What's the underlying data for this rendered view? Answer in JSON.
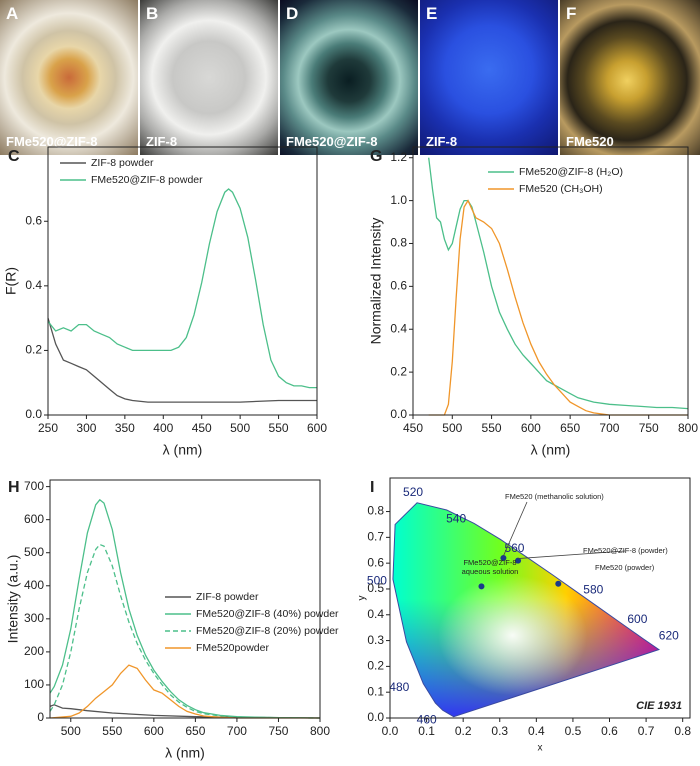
{
  "photos": [
    {
      "letter": "A",
      "caption": "FMe520@ZIF-8"
    },
    {
      "letter": "B",
      "caption": "ZIF-8"
    },
    {
      "letter": "D",
      "caption": "FMe520@ZIF-8"
    },
    {
      "letter": "E",
      "caption": "ZIF-8"
    },
    {
      "letter": "F",
      "caption": "FMe520"
    }
  ],
  "chart_data": [
    {
      "panel": "C",
      "type": "line",
      "xlabel": "λ (nm)",
      "ylabel": "F(R)",
      "xlim": [
        250,
        600
      ],
      "ylim": [
        0,
        0.83
      ],
      "xticks": [
        250,
        300,
        350,
        400,
        450,
        500,
        550,
        600
      ],
      "yticks": [
        {
          "value": 0,
          "label": "0.0"
        },
        0.2,
        0.4,
        0.6
      ],
      "legend": "upper left",
      "series": [
        {
          "name": "ZIF-8 powder",
          "color": "#555555",
          "x": [
            250,
            260,
            270,
            280,
            290,
            300,
            310,
            320,
            330,
            340,
            350,
            360,
            380,
            400,
            450,
            500,
            550,
            600
          ],
          "values": [
            0.3,
            0.22,
            0.17,
            0.16,
            0.15,
            0.14,
            0.12,
            0.1,
            0.08,
            0.06,
            0.05,
            0.045,
            0.04,
            0.04,
            0.04,
            0.04,
            0.045,
            0.045
          ]
        },
        {
          "name": "FMe520@ZIF-8 powder",
          "color": "#4cbf8a",
          "x": [
            250,
            260,
            270,
            280,
            290,
            300,
            310,
            320,
            330,
            340,
            350,
            360,
            370,
            380,
            390,
            400,
            410,
            420,
            430,
            440,
            450,
            460,
            470,
            480,
            485,
            490,
            500,
            510,
            520,
            530,
            540,
            550,
            560,
            570,
            580,
            590,
            600
          ],
          "values": [
            0.29,
            0.26,
            0.27,
            0.26,
            0.28,
            0.28,
            0.26,
            0.25,
            0.24,
            0.22,
            0.21,
            0.2,
            0.2,
            0.2,
            0.2,
            0.2,
            0.2,
            0.21,
            0.24,
            0.31,
            0.41,
            0.53,
            0.63,
            0.69,
            0.7,
            0.69,
            0.64,
            0.55,
            0.42,
            0.28,
            0.17,
            0.12,
            0.1,
            0.09,
            0.09,
            0.085,
            0.085
          ]
        }
      ]
    },
    {
      "panel": "G",
      "type": "line",
      "xlabel": "λ (nm)",
      "ylabel": "Normalized Intensity",
      "xlim": [
        450,
        800
      ],
      "ylim": [
        0,
        1.25
      ],
      "xticks": [
        450,
        500,
        550,
        600,
        650,
        700,
        750,
        800
      ],
      "yticks": [
        {
          "value": 0,
          "label": "0.0"
        },
        0.2,
        0.4,
        0.6,
        0.8,
        {
          "value": 1,
          "label": "1.0"
        },
        1.2
      ],
      "legend": "upper right",
      "series": [
        {
          "name": "FMe520@ZIF-8 (H₂O)",
          "color": "#4cbf8a",
          "x": [
            470,
            475,
            480,
            485,
            490,
            495,
            500,
            505,
            510,
            515,
            520,
            525,
            530,
            540,
            550,
            560,
            570,
            580,
            590,
            600,
            610,
            620,
            630,
            640,
            650,
            660,
            680,
            700,
            720,
            740,
            760,
            780,
            800
          ],
          "values": [
            1.2,
            1.05,
            0.92,
            0.9,
            0.82,
            0.77,
            0.8,
            0.88,
            0.96,
            1,
            1,
            0.97,
            0.9,
            0.76,
            0.6,
            0.48,
            0.4,
            0.33,
            0.28,
            0.24,
            0.2,
            0.16,
            0.14,
            0.12,
            0.1,
            0.08,
            0.06,
            0.05,
            0.045,
            0.04,
            0.035,
            0.035,
            0.03
          ]
        },
        {
          "name": "FMe520 (CH₃OH)",
          "color": "#f0962a",
          "x": [
            470,
            490,
            495,
            500,
            505,
            510,
            515,
            520,
            525,
            530,
            540,
            550,
            560,
            570,
            580,
            590,
            600,
            610,
            620,
            630,
            640,
            650,
            660,
            670,
            680,
            700,
            800
          ],
          "values": [
            0,
            0,
            0.05,
            0.25,
            0.55,
            0.82,
            0.97,
            1,
            0.96,
            0.92,
            0.9,
            0.87,
            0.8,
            0.68,
            0.55,
            0.43,
            0.33,
            0.25,
            0.19,
            0.14,
            0.1,
            0.06,
            0.04,
            0.02,
            0.01,
            0,
            0
          ]
        }
      ]
    },
    {
      "panel": "H",
      "type": "line",
      "xlabel": "λ (nm)",
      "ylabel": "Intensity (a.u.)",
      "xlim": [
        475,
        800
      ],
      "ylim": [
        0,
        720
      ],
      "xticks": [
        500,
        550,
        600,
        650,
        700,
        750,
        800
      ],
      "yticks": [
        0,
        100,
        200,
        300,
        400,
        500,
        600,
        700
      ],
      "legend": "center right",
      "series": [
        {
          "name": "ZIF-8 powder",
          "color": "#555555",
          "x": [
            475,
            480,
            490,
            500,
            520,
            550,
            600,
            650,
            700,
            800
          ],
          "values": [
            35,
            40,
            30,
            28,
            22,
            15,
            8,
            4,
            2,
            0
          ]
        },
        {
          "name": "FMe520@ZIF-8 (40%) powder",
          "color": "#4cbf8a",
          "x": [
            475,
            480,
            490,
            500,
            510,
            520,
            530,
            535,
            540,
            550,
            560,
            570,
            580,
            590,
            600,
            610,
            620,
            630,
            640,
            650,
            660,
            680,
            700,
            750,
            800
          ],
          "values": [
            75,
            95,
            160,
            270,
            420,
            560,
            645,
            660,
            650,
            570,
            440,
            330,
            250,
            190,
            145,
            110,
            80,
            55,
            38,
            25,
            16,
            8,
            4,
            1,
            0
          ]
        },
        {
          "name": "FMe520@ZIF-8 (20%) powder",
          "color": "#4cbf8a",
          "dash": true,
          "x": [
            475,
            480,
            490,
            500,
            510,
            520,
            530,
            535,
            540,
            550,
            560,
            570,
            580,
            590,
            600,
            610,
            620,
            630,
            640,
            650,
            660,
            680,
            700,
            750,
            800
          ],
          "values": [
            20,
            40,
            100,
            200,
            330,
            440,
            510,
            525,
            520,
            460,
            370,
            290,
            225,
            175,
            135,
            100,
            70,
            48,
            32,
            20,
            13,
            6,
            3,
            1,
            0
          ]
        },
        {
          "name": "FMe520powder",
          "color": "#f0962a",
          "x": [
            475,
            500,
            510,
            520,
            530,
            540,
            550,
            560,
            570,
            580,
            590,
            600,
            610,
            620,
            630,
            640,
            650,
            660,
            680,
            700,
            800
          ],
          "values": [
            0,
            5,
            15,
            35,
            60,
            80,
            100,
            135,
            160,
            150,
            115,
            85,
            75,
            55,
            35,
            20,
            12,
            6,
            2,
            0,
            0
          ]
        }
      ]
    },
    {
      "panel": "I",
      "type": "scatter",
      "xlabel": "x",
      "ylabel": "y",
      "annotation": "CIE 1931",
      "xlim": [
        0,
        0.82
      ],
      "ylim": [
        0,
        0.93
      ],
      "xticks": [
        {
          "value": 0,
          "label": "0.0"
        },
        0.1,
        0.2,
        0.3,
        0.4,
        0.5,
        0.6,
        0.7,
        0.8
      ],
      "yticks": [
        {
          "value": 0,
          "label": "0.0"
        },
        0.1,
        0.2,
        0.3,
        0.4,
        0.5,
        0.6,
        0.7,
        0.8
      ],
      "locus_labels": [
        520,
        540,
        560,
        580,
        600,
        620,
        500,
        480,
        460
      ],
      "color": "#1a3a8a",
      "x": [
        0.31,
        0.35,
        0.46,
        0.25
      ],
      "values": [
        0.62,
        0.61,
        0.52,
        0.51
      ],
      "point_labels": [
        [
          "FMe520 (methanolic solution)"
        ],
        [
          "FMe520@ZIF-8 (powder)"
        ],
        [
          "FMe520 (powder)"
        ],
        [
          "FMe520@ZIF-8",
          "aqueous solution"
        ]
      ]
    }
  ]
}
